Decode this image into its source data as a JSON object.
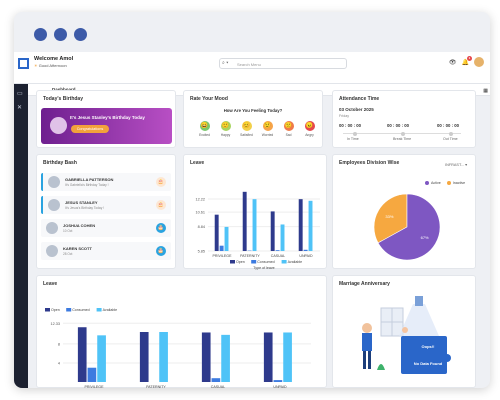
{
  "header": {
    "welcome": "Welcome Amol",
    "greeting": "Good Afternoon",
    "search_placeholder": "Search Menu",
    "notif_count": "1"
  },
  "breadcrumb": "Dashboard",
  "birthday": {
    "title": "Today's Birthday",
    "message": "It's Jesus Stanley's Birthday Today",
    "button": "Congratulations"
  },
  "mood": {
    "title": "Rate Your Mood",
    "question": "How Are You Feeling Today?",
    "options": [
      {
        "label": "Excited",
        "icon": "excited-face-icon",
        "color": "#7bc86c",
        "glyph": "😄"
      },
      {
        "label": "Happy",
        "icon": "happy-face-icon",
        "color": "#a7d45f",
        "glyph": "🙂"
      },
      {
        "label": "Satisfied",
        "icon": "satisfied-face-icon",
        "color": "#f2d04a",
        "glyph": "😊"
      },
      {
        "label": "Worried",
        "icon": "worried-face-icon",
        "color": "#f5a34a",
        "glyph": "😟"
      },
      {
        "label": "Sad",
        "icon": "sad-face-icon",
        "color": "#ef7a4a",
        "glyph": "🙁"
      },
      {
        "label": "Angry",
        "icon": "angry-face-icon",
        "color": "#e5484d",
        "glyph": "😠"
      }
    ]
  },
  "attendance": {
    "title": "Attendance Time",
    "date": "03 October 2025",
    "day": "Friday",
    "in_time": "00 : 00 : 00",
    "break_time": "00 : 00 : 00",
    "out_time": "00 : 00 : 00",
    "in_label": "In Time",
    "break_label": "Break Time",
    "out_label": "Out Time"
  },
  "birthday_bash": {
    "title": "Birthday Bash",
    "rows": [
      {
        "name": "GABRIELLA PATTERSON",
        "sub": "It's Gabriella's Birthday Today !"
      },
      {
        "name": "JESUS STANLEY",
        "sub": "It's Jesus's Birthday Today !"
      },
      {
        "name": "JOSHUA COHEN",
        "sub": "10 Oct"
      },
      {
        "name": "KAREN SCOTT",
        "sub": "28 Oct"
      }
    ]
  },
  "leave_small": {
    "title": "Leave"
  },
  "division": {
    "title": "Employees Division Wise",
    "dropdown": "INFRAST...",
    "active_label": "Active",
    "inactive_label": "Inactive",
    "active_color": "#7e57c2",
    "inactive_color": "#f6a840"
  },
  "leave_big": {
    "title": "Leave"
  },
  "anniversary": {
    "title": "Marriage Anniversary",
    "oops": "Oops!!",
    "nodata": "No Data Found"
  },
  "chart_data": [
    {
      "type": "bar",
      "title": "Leave",
      "xlabel": "Type of leave",
      "ylim": [
        5.85,
        13.2
      ],
      "yticks": [
        "12.22",
        "10.61",
        "8.84",
        "5.85"
      ],
      "categories": [
        "PRIVILEGE",
        "PATERNITY",
        "CASUAL",
        "UNPAID"
      ],
      "series": [
        {
          "name": "Open",
          "color": "#2e3a8c",
          "values": [
            10.3,
            13.1,
            10.7,
            12.2
          ]
        },
        {
          "name": "Consumed",
          "color": "#3d7be0",
          "values": [
            6.5,
            5.9,
            5.95,
            6.0
          ]
        },
        {
          "name": "Available",
          "color": "#4fc3f7",
          "values": [
            8.8,
            12.2,
            9.1,
            12.0
          ]
        }
      ]
    },
    {
      "type": "pie",
      "title": "Employees Division Wise",
      "labels": [
        "Active",
        "Inactive"
      ],
      "values": [
        67,
        33
      ],
      "colors": [
        "#7e57c2",
        "#f6a840"
      ],
      "value_labels": [
        "67%",
        "33%"
      ]
    },
    {
      "type": "bar",
      "title": "Leave",
      "ylim": [
        0,
        12.6
      ],
      "yticks": [
        "12.33",
        "8",
        "4"
      ],
      "categories": [
        "PRIVILEGE",
        "PATERNITY",
        "CASUAL",
        "UNPAID"
      ],
      "series": [
        {
          "name": "Open",
          "color": "#2e3a8c",
          "values": [
            11.5,
            10.5,
            10.4,
            10.4
          ]
        },
        {
          "name": "Consumed",
          "color": "#3d7be0",
          "values": [
            3.0,
            0,
            0.8,
            0.4
          ]
        },
        {
          "name": "Available",
          "color": "#4fc3f7",
          "values": [
            9.8,
            10.5,
            9.9,
            10.4
          ]
        }
      ]
    }
  ]
}
